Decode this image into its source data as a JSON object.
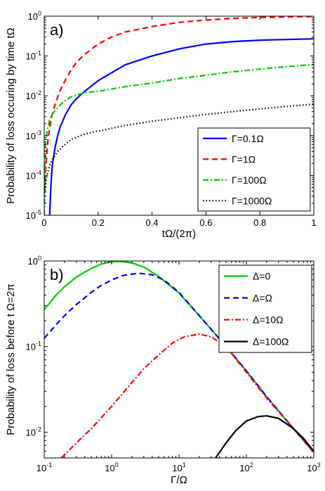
{
  "colors": {
    "blue": "#0000ff",
    "red": "#ff0000",
    "green": "#00cc00",
    "black": "#000000"
  },
  "chart_data": [
    {
      "type": "line",
      "panel_label": "a)",
      "xlabel": "tΩ/(2π)",
      "ylabel": "Probability of loss occuring by time tΩ",
      "xscale": "linear",
      "yscale": "log",
      "xlim": [
        0,
        1
      ],
      "ylim": [
        1e-05,
        1
      ],
      "xticks": [
        0,
        0.2,
        0.4,
        0.6,
        0.8,
        1
      ],
      "xtick_labels": [
        "0",
        "0.2",
        "0.4",
        "0.6",
        "0.8",
        "1"
      ],
      "yticks": [
        1e-05,
        0.0001,
        0.001,
        0.01,
        0.1,
        1
      ],
      "ytick_labels": [
        {
          "base": "10",
          "exp": "-5"
        },
        {
          "base": "10",
          "exp": "-4"
        },
        {
          "base": "10",
          "exp": "-3"
        },
        {
          "base": "10",
          "exp": "-2"
        },
        {
          "base": "10",
          "exp": "-1"
        },
        {
          "base": "10",
          "exp": "0"
        }
      ],
      "legend_position": "bottom-right",
      "series": [
        {
          "name": "Γ=0.1Ω",
          "color": "#0000ff",
          "style": "solid",
          "x": [
            0.02,
            0.025,
            0.03,
            0.04,
            0.05,
            0.06,
            0.08,
            0.1,
            0.12,
            0.15,
            0.2,
            0.25,
            0.3,
            0.4,
            0.5,
            0.6,
            0.7,
            0.8,
            0.9,
            1.0
          ],
          "y": [
            1e-05,
            6e-05,
            0.00018,
            0.0005,
            0.001,
            0.0017,
            0.0035,
            0.006,
            0.0085,
            0.013,
            0.024,
            0.038,
            0.06,
            0.1,
            0.15,
            0.2,
            0.23,
            0.25,
            0.26,
            0.27
          ]
        },
        {
          "name": "Γ=1Ω",
          "color": "#ff0000",
          "style": "dashed",
          "x": [
            0.005,
            0.01,
            0.015,
            0.02,
            0.03,
            0.04,
            0.05,
            0.06,
            0.08,
            0.1,
            0.12,
            0.15,
            0.2,
            0.25,
            0.3,
            0.4,
            0.5,
            0.6,
            0.7,
            0.8,
            0.9,
            1.0
          ],
          "y": [
            0.00012,
            0.0004,
            0.0009,
            0.0016,
            0.0035,
            0.006,
            0.0095,
            0.014,
            0.026,
            0.045,
            0.07,
            0.11,
            0.2,
            0.3,
            0.4,
            0.55,
            0.7,
            0.8,
            0.88,
            0.93,
            0.96,
            0.98
          ]
        },
        {
          "name": "Γ=100Ω",
          "color": "#00cc00",
          "style": "dashdot",
          "x": [
            0.0,
            0.005,
            0.01,
            0.02,
            0.03,
            0.05,
            0.07,
            0.1,
            0.15,
            0.2,
            0.3,
            0.4,
            0.5,
            0.6,
            0.7,
            0.8,
            0.9,
            1.0
          ],
          "y": [
            1e-05,
            0.0006,
            0.0012,
            0.0025,
            0.0035,
            0.005,
            0.007,
            0.0095,
            0.012,
            0.013,
            0.017,
            0.021,
            0.027,
            0.033,
            0.04,
            0.047,
            0.054,
            0.061
          ]
        },
        {
          "name": "Γ=1000Ω",
          "color": "#000000",
          "style": "dotted",
          "x": [
            0.0,
            0.005,
            0.01,
            0.02,
            0.03,
            0.05,
            0.07,
            0.1,
            0.15,
            0.2,
            0.3,
            0.4,
            0.5,
            0.6,
            0.7,
            0.8,
            0.9,
            1.0
          ],
          "y": [
            3e-05,
            6e-05,
            0.0001,
            0.00018,
            0.00025,
            0.0004,
            0.00055,
            0.0008,
            0.0011,
            0.0013,
            0.0018,
            0.0023,
            0.0028,
            0.0034,
            0.004,
            0.0047,
            0.0054,
            0.0062
          ]
        }
      ]
    },
    {
      "type": "line",
      "panel_label": "b)",
      "xlabel": "Γ/Ω",
      "ylabel": "Probability of loss before t Ω=2π",
      "xscale": "log",
      "yscale": "log",
      "xlim": [
        0.1,
        1000
      ],
      "ylim": [
        0.005,
        1
      ],
      "xticks": [
        0.1,
        1,
        10,
        100,
        1000
      ],
      "xtick_labels": [
        {
          "base": "10",
          "exp": "-1"
        },
        {
          "base": "10",
          "exp": "0"
        },
        {
          "base": "10",
          "exp": "1"
        },
        {
          "base": "10",
          "exp": "2"
        },
        {
          "base": "10",
          "exp": "3"
        }
      ],
      "yticks": [
        0.01,
        0.1,
        1
      ],
      "ytick_labels": [
        {
          "base": "10",
          "exp": "-2"
        },
        {
          "base": "10",
          "exp": "-1"
        },
        {
          "base": "10",
          "exp": "0"
        }
      ],
      "legend_position": "top-right",
      "series": [
        {
          "name": "Δ=0",
          "color": "#00cc00",
          "style": "solid",
          "x": [
            0.1,
            0.15,
            0.2,
            0.3,
            0.5,
            0.7,
            1.0,
            1.3,
            2,
            3,
            5,
            10,
            20,
            50,
            100,
            200,
            500,
            1000
          ],
          "y": [
            0.27,
            0.4,
            0.5,
            0.65,
            0.82,
            0.92,
            0.98,
            0.99,
            0.95,
            0.85,
            0.66,
            0.42,
            0.23,
            0.1,
            0.052,
            0.026,
            0.011,
            0.0058
          ]
        },
        {
          "name": "Δ=Ω",
          "color": "#0000ff",
          "style": "dashed",
          "x": [
            0.1,
            0.15,
            0.2,
            0.3,
            0.5,
            0.7,
            1.0,
            1.5,
            2.5,
            4,
            6,
            10,
            20,
            50,
            100,
            200,
            500,
            1000
          ],
          "y": [
            0.125,
            0.18,
            0.23,
            0.31,
            0.43,
            0.52,
            0.6,
            0.68,
            0.72,
            0.69,
            0.6,
            0.43,
            0.23,
            0.1,
            0.052,
            0.026,
            0.011,
            0.0058
          ]
        },
        {
          "name": "Δ=10Ω",
          "color": "#ff0000",
          "style": "dashdot",
          "x": [
            0.18,
            0.3,
            0.5,
            1,
            2,
            3,
            5,
            8,
            12,
            20,
            30,
            50,
            100,
            200,
            500,
            1000
          ],
          "y": [
            0.005,
            0.0075,
            0.011,
            0.02,
            0.038,
            0.055,
            0.08,
            0.11,
            0.13,
            0.14,
            0.13,
            0.1,
            0.05,
            0.025,
            0.011,
            0.0058
          ]
        },
        {
          "name": "Δ=100Ω",
          "color": "#000000",
          "style": "solid",
          "x": [
            35,
            50,
            70,
            100,
            150,
            200,
            300,
            500,
            700,
            1000
          ],
          "y": [
            0.005,
            0.0075,
            0.0105,
            0.0135,
            0.0152,
            0.0155,
            0.0145,
            0.011,
            0.0085,
            0.006
          ]
        }
      ]
    }
  ]
}
